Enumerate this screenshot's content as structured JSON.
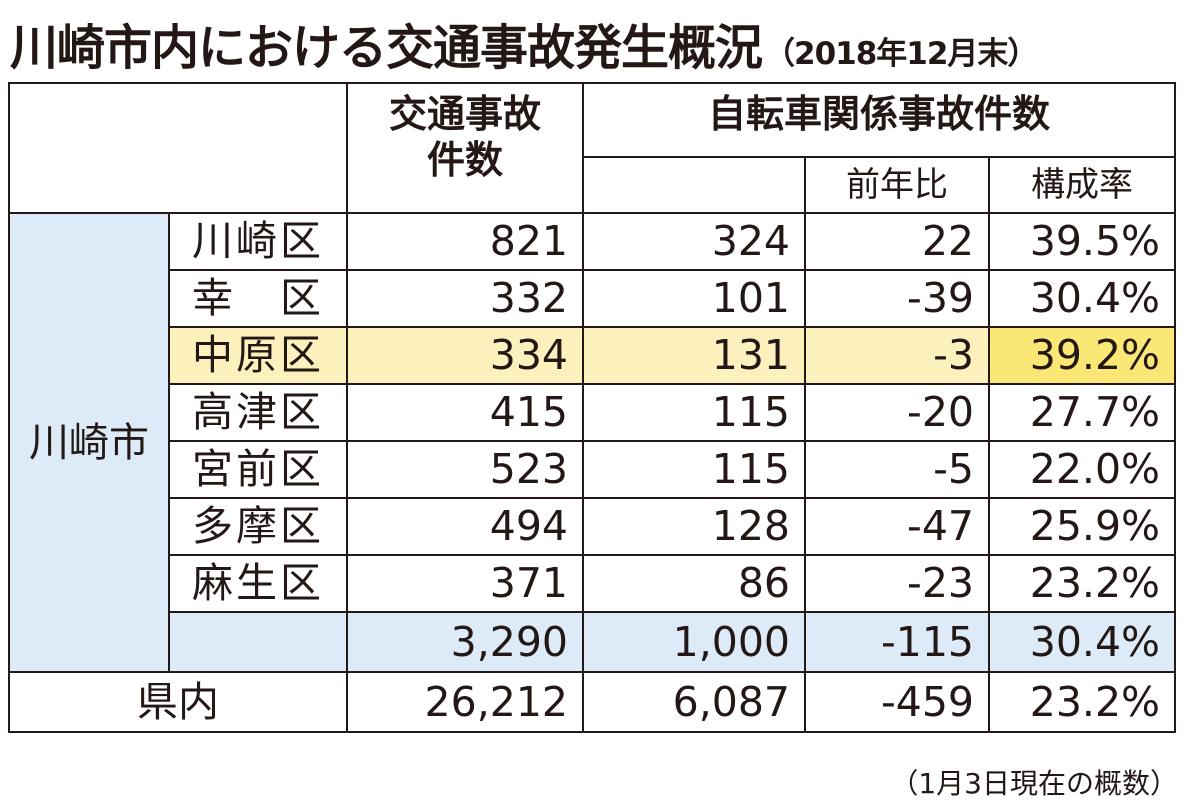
{
  "title": "川崎市内における交通事故発生概況",
  "subtitle": "（2018年12月末）",
  "headers": {
    "accidents": "交通事故件数",
    "bicycle": "自転車関係事故件数",
    "yoy": "前年比",
    "ratio": "構成率"
  },
  "city_label": "川崎市",
  "rows": [
    {
      "ward": "川崎区",
      "accidents": "821",
      "bicycle": "324",
      "yoy": "22",
      "ratio": "39.5%"
    },
    {
      "ward": "幸　区",
      "accidents": "332",
      "bicycle": "101",
      "yoy": "-39",
      "ratio": "30.4%"
    },
    {
      "ward": "中原区",
      "accidents": "334",
      "bicycle": "131",
      "yoy": "-3",
      "ratio": "39.2%"
    },
    {
      "ward": "高津区",
      "accidents": "415",
      "bicycle": "115",
      "yoy": "-20",
      "ratio": "27.7%"
    },
    {
      "ward": "宮前区",
      "accidents": "523",
      "bicycle": "115",
      "yoy": "-5",
      "ratio": "22.0%"
    },
    {
      "ward": "多摩区",
      "accidents": "494",
      "bicycle": "128",
      "yoy": "-47",
      "ratio": "25.9%"
    },
    {
      "ward": "麻生区",
      "accidents": "371",
      "bicycle": "86",
      "yoy": "-23",
      "ratio": "23.2%"
    }
  ],
  "city_total": {
    "accidents": "3,290",
    "bicycle": "1,000",
    "yoy": "-115",
    "ratio": "30.4%"
  },
  "prefecture": {
    "label": "県内",
    "accidents": "26,212",
    "bicycle": "6,087",
    "yoy": "-459",
    "ratio": "23.2%"
  },
  "footnote": "（1月3日現在の概数）",
  "colors": {
    "city_bg": "#dcebf7",
    "highlight": "#fcf1bd",
    "highlight_strong": "#fbe776"
  }
}
